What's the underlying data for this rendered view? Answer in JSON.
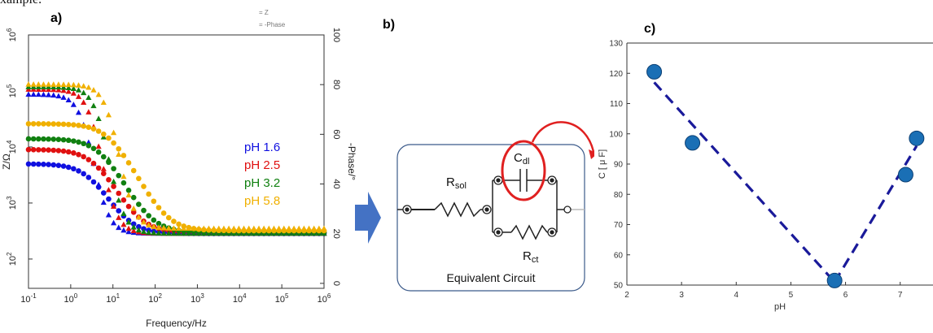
{
  "top_text": "xample.",
  "chart_data": [
    {
      "id": "a",
      "type": "line",
      "panel_label": "a)",
      "xlabel": "Frequency/Hz",
      "ylabel": "Z/Ω",
      "y2label": "-Phase/°",
      "xscale": "log",
      "yscale": "log",
      "xlim": [
        0.1,
        1000000
      ],
      "ylim": [
        30,
        1000000
      ],
      "y2lim": [
        -2,
        100
      ],
      "xticks": [
        "10-1",
        "100",
        "101",
        "102",
        "103",
        "104",
        "105",
        "106"
      ],
      "yticks": [
        "102",
        "103",
        "104",
        "105",
        "106"
      ],
      "y2ticks": [
        "0",
        "20",
        "40",
        "60",
        "80",
        "100"
      ],
      "legend_top": [
        "= Z",
        "= -Phase"
      ],
      "grid": false,
      "series": [
        {
          "name": "pH  1.6",
          "color": "#1010e0",
          "impedance_params": {
            "r_low": 5000,
            "r_high": 285,
            "fc": 3.0
          },
          "phase_params": {
            "p_max": 76,
            "p_min": 20,
            "fc": 3.5
          }
        },
        {
          "name": "pH 2.5",
          "color": "#e01010",
          "impedance_params": {
            "r_low": 9000,
            "r_high": 300,
            "fc": 4.0
          },
          "phase_params": {
            "p_max": 78,
            "p_min": 20,
            "fc": 5.5
          }
        },
        {
          "name": "pH 3.2",
          "color": "#108010",
          "impedance_params": {
            "r_low": 14000,
            "r_high": 300,
            "fc": 5.5
          },
          "phase_params": {
            "p_max": 79,
            "p_min": 20,
            "fc": 8
          }
        },
        {
          "name": "pH 5.8",
          "color": "#f0b000",
          "impedance_params": {
            "r_low": 26000,
            "r_high": 320,
            "fc": 9.0
          },
          "phase_params": {
            "p_max": 80,
            "p_min": 22,
            "fc": 14
          }
        }
      ]
    },
    {
      "id": "c",
      "type": "scatter",
      "panel_label": "c)",
      "xlabel": "pH",
      "ylabel": "C [ μ F]",
      "xlim": [
        2,
        7.6
      ],
      "ylim": [
        50,
        130
      ],
      "xticks": [
        2,
        3,
        4,
        5,
        6,
        7
      ],
      "yticks": [
        50,
        60,
        70,
        80,
        90,
        100,
        110,
        120,
        130
      ],
      "series": [
        {
          "name": "",
          "x": [
            2.5,
            3.2,
            5.8,
            7.1,
            7.3
          ],
          "y": [
            120.5,
            97,
            51.5,
            86.5,
            98.5
          ]
        }
      ],
      "fit_lines": [
        {
          "x": [
            2.5,
            5.8
          ],
          "y": [
            117,
            51
          ]
        },
        {
          "x": [
            5.8,
            7.3
          ],
          "y": [
            51,
            96
          ]
        }
      ],
      "marker_color": "#1a6fb5",
      "line_color": "#1a1a9a"
    }
  ],
  "circuit": {
    "panel_label": "b)",
    "r_sol_main": "R",
    "r_sol_sub": "sol",
    "c_dl_main": "C",
    "c_dl_sub": "dl",
    "r_ct_main": "R",
    "r_ct_sub": "ct",
    "caption": "Equivalent Circuit",
    "arrow_color": "#4472c4",
    "highlight_color": "#e02020",
    "box_color": "#3b5a8a"
  }
}
